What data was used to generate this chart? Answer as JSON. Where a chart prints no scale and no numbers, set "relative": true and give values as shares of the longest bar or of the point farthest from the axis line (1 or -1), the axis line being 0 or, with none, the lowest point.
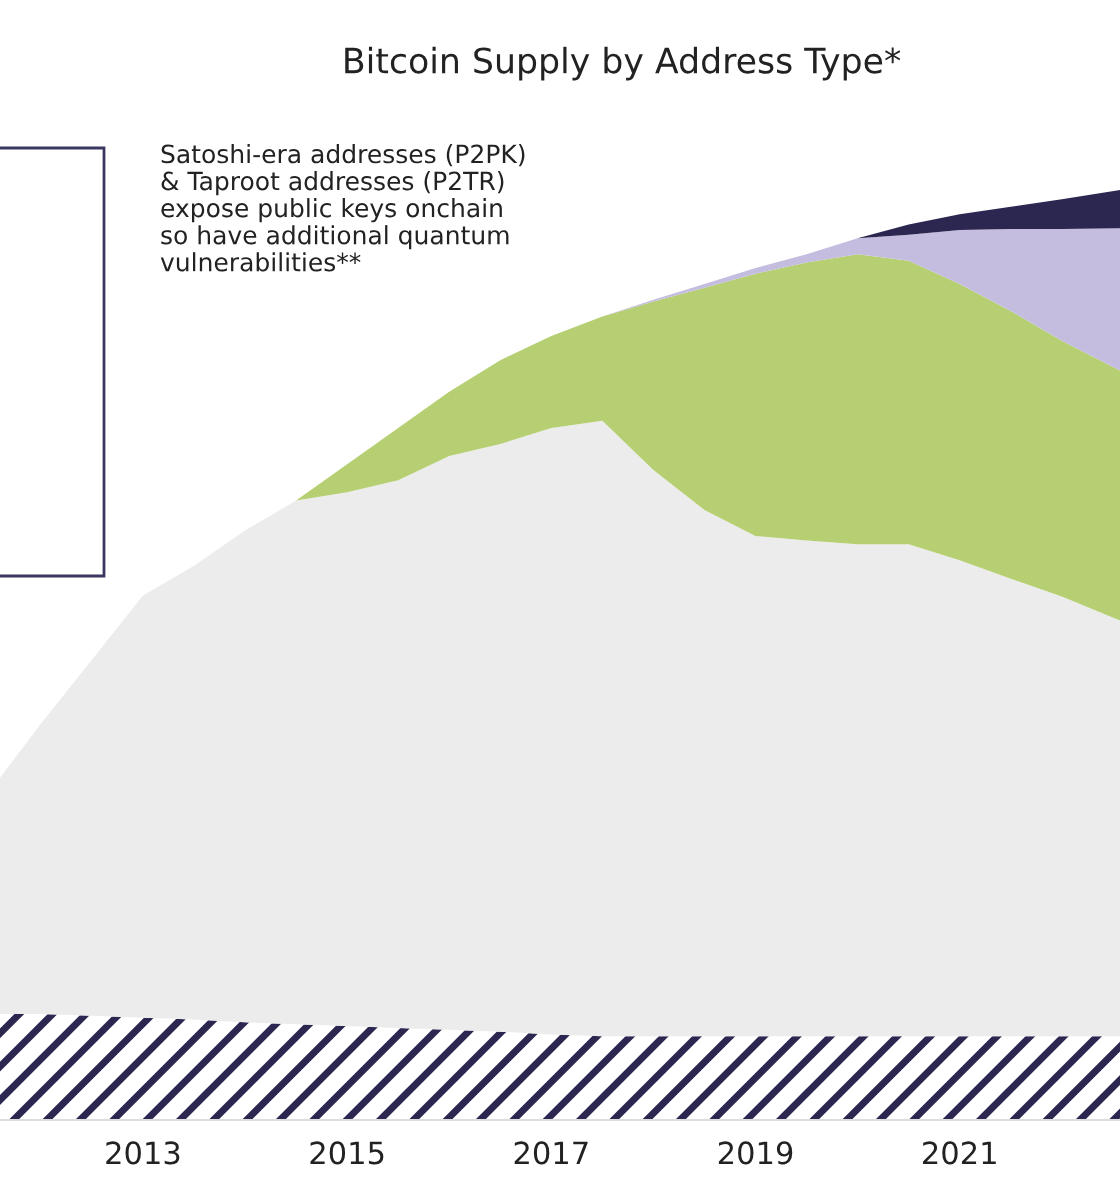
{
  "chart_data": {
    "type": "area",
    "stacked": true,
    "relative": true,
    "title": "Bitcoin Supply by Address Type*",
    "annotations": [
      "Satoshi-era addresses (P2PK)\n& Taproot addresses (P2TR)\nexpose public keys onchain\nso have additional quantum\nvulnerabilities**"
    ],
    "x": [
      2011.6,
      2012,
      2012.5,
      2013,
      2013.5,
      2014,
      2014.5,
      2015,
      2015.5,
      2016,
      2016.5,
      2017,
      2017.5,
      2018,
      2018.5,
      2019,
      2019.5,
      2020,
      2020.5,
      2021,
      2021.5,
      2022,
      2022.57
    ],
    "xlim": [
      2011.6,
      2022.57
    ],
    "xticks": [
      2013,
      2015,
      2017,
      2019,
      2021
    ],
    "series": [
      {
        "color": "#2b2750",
        "values": [
          0.114,
          0.114,
          0.112,
          0.11,
          0.108,
          0.105,
          0.103,
          0.101,
          0.099,
          0.097,
          0.095,
          0.092,
          0.09,
          0.09,
          0.09,
          0.09,
          0.09,
          0.09,
          0.09,
          0.09,
          0.09,
          0.09,
          0.09
        ]
      },
      {
        "color": "#ececec",
        "values": [
          0.254,
          0.312,
          0.383,
          0.454,
          0.488,
          0.529,
          0.563,
          0.574,
          0.589,
          0.617,
          0.632,
          0.652,
          0.662,
          0.609,
          0.566,
          0.538,
          0.533,
          0.529,
          0.529,
          0.512,
          0.492,
          0.473,
          0.447
        ]
      },
      {
        "color": "#b5cf72",
        "values": [
          0,
          0,
          0,
          0,
          0,
          0,
          0,
          0.03,
          0.056,
          0.069,
          0.09,
          0.099,
          0.112,
          0.181,
          0.239,
          0.282,
          0.299,
          0.312,
          0.305,
          0.297,
          0.288,
          0.275,
          0.269
        ]
      },
      {
        "color": "#c4bde0",
        "values": [
          0,
          0,
          0,
          0,
          0,
          0,
          0,
          0,
          0,
          0,
          0,
          0,
          0,
          0.002,
          0.004,
          0.006,
          0.009,
          0.017,
          0.028,
          0.058,
          0.088,
          0.12,
          0.153
        ]
      },
      {
        "color": "#2b2750",
        "values": [
          0,
          0,
          0,
          0,
          0,
          0,
          0,
          0,
          0,
          0,
          0,
          0,
          0,
          0,
          0,
          0,
          0,
          0,
          0.011,
          0.017,
          0.024,
          0.032,
          0.041
        ]
      }
    ]
  }
}
